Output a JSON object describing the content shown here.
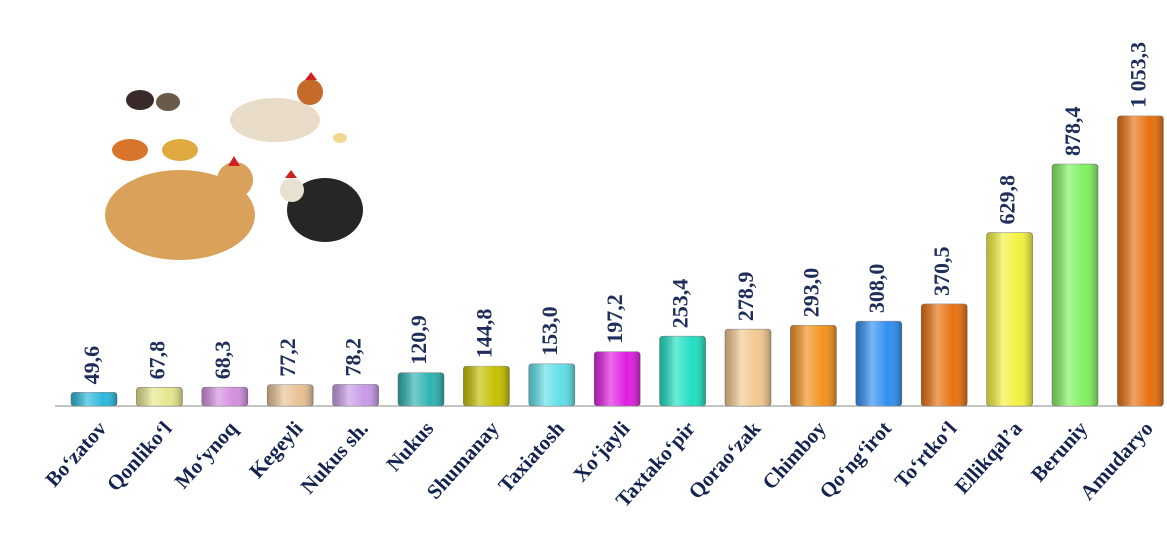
{
  "chart_data": {
    "type": "bar",
    "categories": [
      "Bo‘zatov",
      "Qonliko‘l",
      "Mo‘ynoq",
      "Kegeyli",
      "Nukus sh.",
      "Nukus",
      "Shumanay",
      "Taxiatosh",
      "Xo‘jayli",
      "Taxtako‘pir",
      "Qorao‘zak",
      "Chimboy",
      "Qo‘ng‘irot",
      "To‘rtko‘l",
      "Ellikqal’a",
      "Beruniy",
      "Amudaryo"
    ],
    "values": [
      49.6,
      67.8,
      68.3,
      77.2,
      78.2,
      120.9,
      144.8,
      153.0,
      197.2,
      253.4,
      278.9,
      293.0,
      308.0,
      370.5,
      629.8,
      878.4,
      1053.3
    ],
    "value_labels": [
      "49,6",
      "67,8",
      "68,3",
      "77,2",
      "78,2",
      "120,9",
      "144,8",
      "153,0",
      "197,2",
      "253,4",
      "278,9",
      "293,0",
      "308,0",
      "370,5",
      "629,8",
      "878,4",
      "1 053,3"
    ],
    "colors": [
      "#2bb8dc",
      "#e6e68c",
      "#d48ee0",
      "#e8c294",
      "#c89ae8",
      "#2fb2b2",
      "#c6bf00",
      "#5fdfe8",
      "#e01ee0",
      "#1fe0c2",
      "#f2c890",
      "#f2921c",
      "#2f8ff0",
      "#e8700f",
      "#f2f23e",
      "#80f060",
      "#e8700f"
    ],
    "ylim": [
      0,
      1100
    ]
  }
}
